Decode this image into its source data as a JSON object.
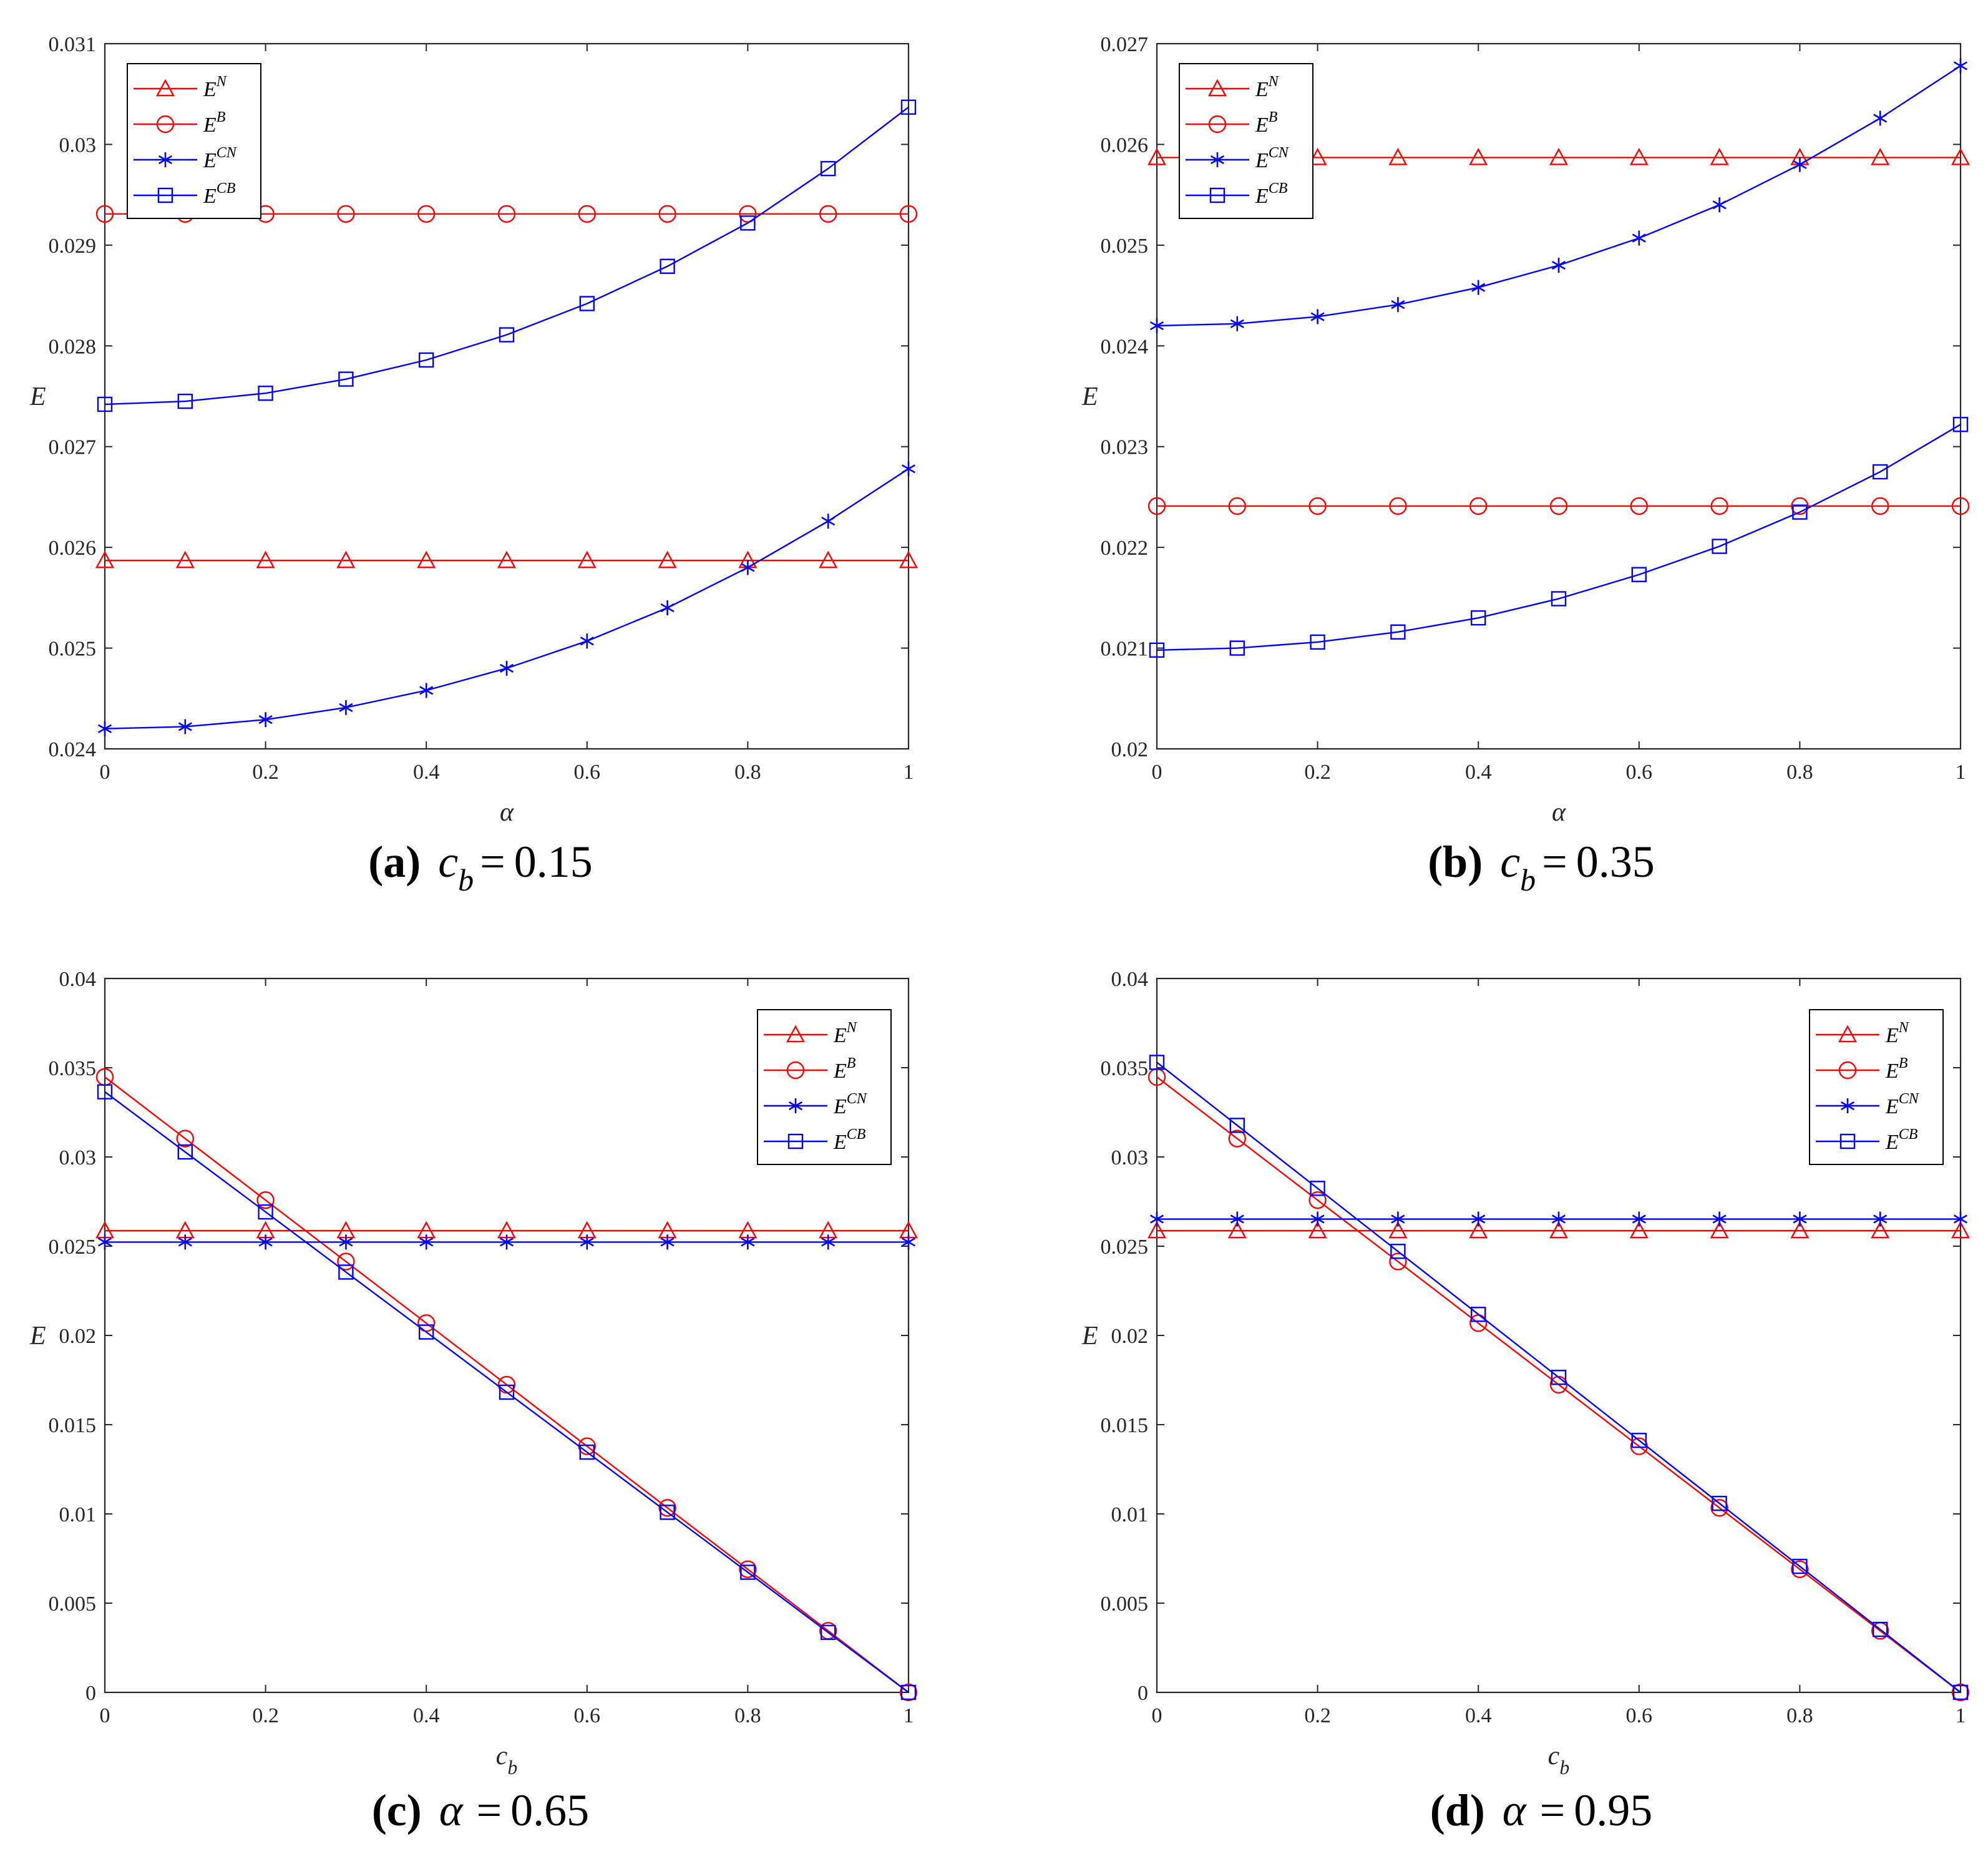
{
  "figure": {
    "colors": {
      "red": "#ff0000",
      "blue": "#0000ff",
      "axis": "#262626",
      "tick_text": "#262626"
    }
  },
  "chart_data": [
    {
      "panel": "a",
      "type": "line",
      "caption": {
        "tag": "(a)",
        "var_main": "c",
        "var_sub": "b",
        "eq": "=",
        "value": "0.15"
      },
      "xlabel": "α",
      "ylabel": "E",
      "xlim": [
        0,
        1
      ],
      "ylim": [
        0.024,
        0.031
      ],
      "xticks": [
        0,
        0.2,
        0.4,
        0.6,
        0.8,
        1
      ],
      "xtick_labels": [
        "0",
        "0.2",
        "0.4",
        "0.6",
        "0.8",
        "1"
      ],
      "yticks": [
        0.024,
        0.025,
        0.026,
        0.027,
        0.028,
        0.029,
        0.03,
        0.031
      ],
      "ytick_labels": [
        "0.024",
        "0.025",
        "0.026",
        "0.027",
        "0.028",
        "0.029",
        "0.03",
        "0.031"
      ],
      "legend_position": "top-left",
      "x": [
        0,
        0.1,
        0.2,
        0.3,
        0.4,
        0.5,
        0.6,
        0.7,
        0.8,
        0.9,
        1.0
      ],
      "series": [
        {
          "name": "E^N",
          "base": "E",
          "sup": "N",
          "color": "red",
          "marker": "triangle",
          "values": [
            0.02587,
            0.02587,
            0.02587,
            0.02587,
            0.02587,
            0.02587,
            0.02587,
            0.02587,
            0.02587,
            0.02587,
            0.02587
          ]
        },
        {
          "name": "E^B",
          "base": "E",
          "sup": "B",
          "color": "red",
          "marker": "circle",
          "values": [
            0.02931,
            0.02931,
            0.02931,
            0.02931,
            0.02931,
            0.02931,
            0.02931,
            0.02931,
            0.02931,
            0.02931,
            0.02931
          ]
        },
        {
          "name": "E^CN",
          "base": "E",
          "sup": "CN",
          "color": "blue",
          "marker": "star",
          "values": [
            0.0242,
            0.02422,
            0.02429,
            0.02441,
            0.02458,
            0.0248,
            0.02507,
            0.0254,
            0.0258,
            0.02626,
            0.02678
          ]
        },
        {
          "name": "E^CB",
          "base": "E",
          "sup": "CB",
          "color": "blue",
          "marker": "square",
          "values": [
            0.02742,
            0.02745,
            0.02753,
            0.02767,
            0.02786,
            0.02811,
            0.02842,
            0.02879,
            0.02922,
            0.02976,
            0.03037
          ]
        }
      ]
    },
    {
      "panel": "b",
      "type": "line",
      "caption": {
        "tag": "(b)",
        "var_main": "c",
        "var_sub": "b",
        "eq": "=",
        "value": "0.35"
      },
      "xlabel": "α",
      "ylabel": "E",
      "xlim": [
        0,
        1
      ],
      "ylim": [
        0.02,
        0.027
      ],
      "xticks": [
        0,
        0.2,
        0.4,
        0.6,
        0.8,
        1
      ],
      "xtick_labels": [
        "0",
        "0.2",
        "0.4",
        "0.6",
        "0.8",
        "1"
      ],
      "yticks": [
        0.02,
        0.021,
        0.022,
        0.023,
        0.024,
        0.025,
        0.026,
        0.027
      ],
      "ytick_labels": [
        "0.02",
        "0.021",
        "0.022",
        "0.023",
        "0.024",
        "0.025",
        "0.026",
        "0.027"
      ],
      "legend_position": "top-left",
      "x": [
        0,
        0.1,
        0.2,
        0.3,
        0.4,
        0.5,
        0.6,
        0.7,
        0.8,
        0.9,
        1.0
      ],
      "series": [
        {
          "name": "E^N",
          "base": "E",
          "sup": "N",
          "color": "red",
          "marker": "triangle",
          "values": [
            0.02587,
            0.02587,
            0.02587,
            0.02587,
            0.02587,
            0.02587,
            0.02587,
            0.02587,
            0.02587,
            0.02587,
            0.02587
          ]
        },
        {
          "name": "E^B",
          "base": "E",
          "sup": "B",
          "color": "red",
          "marker": "circle",
          "values": [
            0.02241,
            0.02241,
            0.02241,
            0.02241,
            0.02241,
            0.02241,
            0.02241,
            0.02241,
            0.02241,
            0.02241,
            0.02241
          ]
        },
        {
          "name": "E^CN",
          "base": "E",
          "sup": "CN",
          "color": "blue",
          "marker": "star",
          "values": [
            0.0242,
            0.02422,
            0.02429,
            0.02441,
            0.02458,
            0.0248,
            0.02507,
            0.0254,
            0.0258,
            0.02626,
            0.02678
          ]
        },
        {
          "name": "E^CB",
          "base": "E",
          "sup": "CB",
          "color": "blue",
          "marker": "square",
          "values": [
            0.02098,
            0.021,
            0.02106,
            0.02116,
            0.0213,
            0.02149,
            0.02173,
            0.02201,
            0.02235,
            0.02275,
            0.02322
          ]
        }
      ]
    },
    {
      "panel": "c",
      "type": "line",
      "caption": {
        "tag": "(c)",
        "var_main": "α",
        "var_sub": "",
        "eq": "=",
        "value": "0.65"
      },
      "xlabel": "c",
      "xlabel_sub": "b",
      "ylabel": "E",
      "xlim": [
        0,
        1
      ],
      "ylim": [
        0,
        0.04
      ],
      "xticks": [
        0,
        0.2,
        0.4,
        0.6,
        0.8,
        1
      ],
      "xtick_labels": [
        "0",
        "0.2",
        "0.4",
        "0.6",
        "0.8",
        "1"
      ],
      "yticks": [
        0,
        0.005,
        0.01,
        0.015,
        0.02,
        0.025,
        0.03,
        0.035,
        0.04
      ],
      "ytick_labels": [
        "0",
        "0.005",
        "0.01",
        "0.015",
        "0.02",
        "0.025",
        "0.03",
        "0.035",
        "0.04"
      ],
      "legend_position": "top-right",
      "x": [
        0,
        0.1,
        0.2,
        0.3,
        0.4,
        0.5,
        0.6,
        0.7,
        0.8,
        0.9,
        1.0
      ],
      "series": [
        {
          "name": "E^N",
          "base": "E",
          "sup": "N",
          "color": "red",
          "marker": "triangle",
          "values": [
            0.02587,
            0.02587,
            0.02587,
            0.02587,
            0.02587,
            0.02587,
            0.02587,
            0.02587,
            0.02587,
            0.02587,
            0.02587
          ]
        },
        {
          "name": "E^B",
          "base": "E",
          "sup": "B",
          "color": "red",
          "marker": "circle",
          "values": [
            0.03448,
            0.03103,
            0.02758,
            0.02414,
            0.02069,
            0.01724,
            0.01379,
            0.01034,
            0.0069,
            0.00345,
            0.0
          ]
        },
        {
          "name": "E^CN",
          "base": "E",
          "sup": "CN",
          "color": "blue",
          "marker": "star",
          "values": [
            0.02523,
            0.02523,
            0.02523,
            0.02523,
            0.02523,
            0.02523,
            0.02523,
            0.02523,
            0.02523,
            0.02523,
            0.02523
          ]
        },
        {
          "name": "E^CB",
          "base": "E",
          "sup": "CB",
          "color": "blue",
          "marker": "square",
          "values": [
            0.03365,
            0.03028,
            0.02692,
            0.02355,
            0.02019,
            0.01682,
            0.01346,
            0.01009,
            0.00673,
            0.00336,
            0.0
          ]
        }
      ]
    },
    {
      "panel": "d",
      "type": "line",
      "caption": {
        "tag": "(d)",
        "var_main": "α",
        "var_sub": "",
        "eq": "=",
        "value": "0.95"
      },
      "xlabel": "c",
      "xlabel_sub": "b",
      "ylabel": "E",
      "xlim": [
        0,
        1
      ],
      "ylim": [
        0,
        0.04
      ],
      "xticks": [
        0,
        0.2,
        0.4,
        0.6,
        0.8,
        1
      ],
      "xtick_labels": [
        "0",
        "0.2",
        "0.4",
        "0.6",
        "0.8",
        "1"
      ],
      "yticks": [
        0,
        0.005,
        0.01,
        0.015,
        0.02,
        0.025,
        0.03,
        0.035,
        0.04
      ],
      "ytick_labels": [
        "0",
        "0.005",
        "0.01",
        "0.015",
        "0.02",
        "0.025",
        "0.03",
        "0.035",
        "0.04"
      ],
      "legend_position": "top-right",
      "x": [
        0,
        0.1,
        0.2,
        0.3,
        0.4,
        0.5,
        0.6,
        0.7,
        0.8,
        0.9,
        1.0
      ],
      "series": [
        {
          "name": "E^N",
          "base": "E",
          "sup": "N",
          "color": "red",
          "marker": "triangle",
          "values": [
            0.02587,
            0.02587,
            0.02587,
            0.02587,
            0.02587,
            0.02587,
            0.02587,
            0.02587,
            0.02587,
            0.02587,
            0.02587
          ]
        },
        {
          "name": "E^B",
          "base": "E",
          "sup": "B",
          "color": "red",
          "marker": "circle",
          "values": [
            0.03448,
            0.03103,
            0.02758,
            0.02414,
            0.02069,
            0.01724,
            0.01379,
            0.01034,
            0.0069,
            0.00345,
            0.0
          ]
        },
        {
          "name": "E^CN",
          "base": "E",
          "sup": "CN",
          "color": "blue",
          "marker": "star",
          "values": [
            0.02652,
            0.02652,
            0.02652,
            0.02652,
            0.02652,
            0.02652,
            0.02652,
            0.02652,
            0.02652,
            0.02652,
            0.02652
          ]
        },
        {
          "name": "E^CB",
          "base": "E",
          "sup": "CB",
          "color": "blue",
          "marker": "square",
          "values": [
            0.0353,
            0.03177,
            0.02824,
            0.02471,
            0.02118,
            0.01765,
            0.01412,
            0.01059,
            0.00706,
            0.00353,
            0.0
          ]
        }
      ]
    }
  ]
}
